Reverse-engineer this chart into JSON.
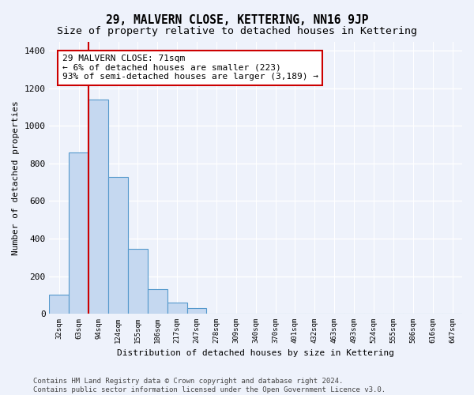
{
  "title": "29, MALVERN CLOSE, KETTERING, NN16 9JP",
  "subtitle": "Size of property relative to detached houses in Kettering",
  "xlabel": "Distribution of detached houses by size in Kettering",
  "ylabel": "Number of detached properties",
  "bar_labels": [
    "32sqm",
    "63sqm",
    "94sqm",
    "124sqm",
    "155sqm",
    "186sqm",
    "217sqm",
    "247sqm",
    "278sqm",
    "309sqm",
    "340sqm",
    "370sqm",
    "401sqm",
    "432sqm",
    "463sqm",
    "493sqm",
    "524sqm",
    "555sqm",
    "586sqm",
    "616sqm",
    "647sqm"
  ],
  "all_bar_values": [
    100,
    860,
    1140,
    730,
    345,
    130,
    60,
    30,
    0,
    0,
    0,
    0,
    0,
    0,
    0,
    0,
    0,
    0,
    0,
    0,
    0
  ],
  "bar_color": "#c5d8f0",
  "bar_edge_color": "#5599cc",
  "annotation_line1": "29 MALVERN CLOSE: 71sqm",
  "annotation_line2": "← 6% of detached houses are smaller (223)",
  "annotation_line3": "93% of semi-detached houses are larger (3,189) →",
  "annotation_box_color": "#ffffff",
  "annotation_border_color": "#cc0000",
  "vline_color": "#cc0000",
  "vline_x": 1.5,
  "ylim": [
    0,
    1450
  ],
  "yticks": [
    0,
    200,
    400,
    600,
    800,
    1000,
    1200,
    1400
  ],
  "bg_color": "#eef2fb",
  "axes_bg_color": "#eef2fb",
  "footer_line1": "Contains HM Land Registry data © Crown copyright and database right 2024.",
  "footer_line2": "Contains public sector information licensed under the Open Government Licence v3.0.",
  "grid_color": "#ffffff",
  "title_fontsize": 10.5,
  "subtitle_fontsize": 9.5,
  "label_fontsize": 8,
  "annotation_fontsize": 8,
  "footer_fontsize": 6.5
}
